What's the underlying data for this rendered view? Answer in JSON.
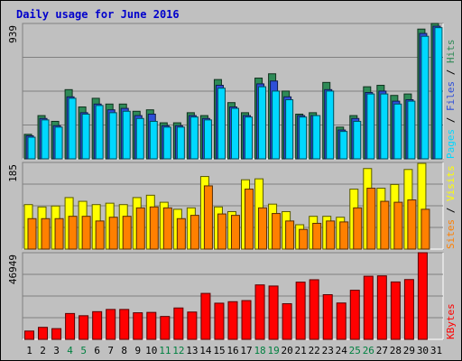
{
  "chart_data": {
    "type": "bar",
    "title": "Daily usage for June 2016",
    "x": [
      "1",
      "2",
      "3",
      "4",
      "5",
      "6",
      "7",
      "8",
      "9",
      "10",
      "11",
      "12",
      "13",
      "14",
      "15",
      "16",
      "17",
      "18",
      "19",
      "20",
      "21",
      "22",
      "23",
      "24",
      "25",
      "26",
      "27",
      "28",
      "29",
      "30",
      "31"
    ],
    "weekend_days": [
      "4",
      "5",
      "11",
      "12",
      "18",
      "19",
      "25",
      "26"
    ],
    "panels": [
      {
        "id": "hits-files-pages",
        "ymax": 939,
        "ymax_label": "939",
        "ylabel_parts": [
          "Pages",
          "Files",
          "Hits"
        ],
        "series": [
          {
            "name": "Hits",
            "color": "#2e8b57",
            "values": [
              170,
              300,
              260,
              480,
              360,
              420,
              380,
              380,
              330,
              340,
              250,
              250,
              320,
              300,
              550,
              390,
              320,
              560,
              590,
              470,
              310,
              320,
              530,
              220,
              300,
              500,
              510,
              440,
              450,
              900,
              939
            ]
          },
          {
            "name": "Files",
            "color": "#2e4fd8",
            "values": [
              160,
              280,
              230,
              430,
              320,
              380,
              340,
              350,
              300,
              310,
              230,
              230,
              300,
              280,
              510,
              360,
              300,
              520,
              540,
              430,
              300,
              300,
              480,
              200,
              280,
              460,
              470,
              400,
              410,
              870,
              920
            ]
          },
          {
            "name": "Pages",
            "color": "#00d8ff",
            "values": [
              150,
              270,
              220,
              420,
              310,
              370,
              320,
              330,
              280,
              260,
              220,
              220,
              290,
              270,
              490,
              350,
              290,
              500,
              470,
              410,
              290,
              300,
              470,
              190,
              260,
              450,
              450,
              380,
              400,
              850,
              910
            ]
          }
        ]
      },
      {
        "id": "visits-sites",
        "ymax": 185,
        "ymax_label": "185",
        "ylabel_parts": [
          "Sites",
          "Visits"
        ],
        "series": [
          {
            "name": "Visits",
            "color": "#ffff00",
            "values": [
              95,
              90,
              92,
              110,
              102,
              95,
              98,
              95,
              110,
              115,
              100,
              85,
              88,
              155,
              90,
              80,
              148,
              150,
              96,
              80,
              52,
              70,
              70,
              68,
              128,
              172,
              130,
              138,
              170,
              183,
              null
            ]
          },
          {
            "name": "Sites",
            "color": "#ff8000",
            "values": [
              65,
              65,
              65,
              70,
              70,
              60,
              68,
              70,
              88,
              90,
              88,
              65,
              72,
              135,
              75,
              72,
              128,
              88,
              76,
              60,
              42,
              55,
              60,
              58,
              88,
              130,
              102,
              100,
              105,
              85,
              null
            ]
          }
        ]
      },
      {
        "id": "kbytes",
        "ymax": 46949,
        "ymax_label": "46949",
        "ylabel_parts": [
          "KBytes"
        ],
        "series": [
          {
            "name": "KBytes",
            "color": "#ff0000",
            "values": [
              4500,
              6500,
              5800,
              14000,
              12800,
              15000,
              16200,
              16200,
              14400,
              14600,
              12400,
              17000,
              14800,
              24900,
              19600,
              20400,
              21000,
              29500,
              28900,
              19300,
              31000,
              32300,
              24200,
              19700,
              26600,
              34200,
              34400,
              31100,
              32400,
              46949,
              null
            ]
          }
        ]
      }
    ]
  }
}
